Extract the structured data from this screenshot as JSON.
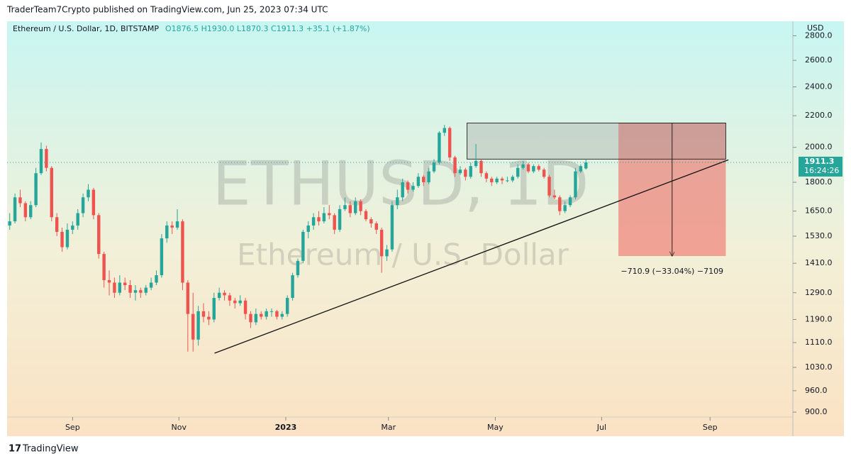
{
  "chart_data": {
    "type": "candlestick",
    "publisher": "TraderTeam7Crypto published on TradingView.com, Jun 25, 2023 07:34 UTC",
    "symbol": "Ethereum / U.S. Dollar, 1D, BITSTAMP",
    "ohlc_text": "O1876.5 H1930.0 L1870.3 C1911.3 +35.1 (+1.87%)",
    "watermark": "ETHUSD, 1D",
    "watermark_sub": "Ethereum / U.S. Dollar",
    "currency": "USD",
    "countdown": "16:24:26",
    "brand": "TradingView",
    "measure_label": "−710.9 (−33.04%) −7109",
    "up_color": "#26a69a",
    "down_color": "#ef5350",
    "log_scale": true,
    "xlim": [
      -0.5,
      149.5
    ],
    "xticks": [
      {
        "value": 12,
        "label": "Sep"
      },
      {
        "value": 32.3,
        "label": "Nov"
      },
      {
        "value": 52.7,
        "label": "2023"
      },
      {
        "value": 72.3,
        "label": "Mar"
      },
      {
        "value": 92.7,
        "label": "May"
      },
      {
        "value": 113,
        "label": "Jul"
      },
      {
        "value": 133.7,
        "label": "Sep"
      }
    ],
    "ylim": [
      837,
      2925
    ],
    "yticks": [
      {
        "value": 900,
        "label": "900.0"
      },
      {
        "value": 960,
        "label": "960.0"
      },
      {
        "value": 1030,
        "label": "1030.0"
      },
      {
        "value": 1110,
        "label": "1110.0"
      },
      {
        "value": 1190,
        "label": "1190.0"
      },
      {
        "value": 1290,
        "label": "1290.0"
      },
      {
        "value": 1410,
        "label": "1410.0"
      },
      {
        "value": 1530,
        "label": "1530.0"
      },
      {
        "value": 1650,
        "label": "1650.0"
      },
      {
        "value": 1800,
        "label": "1800.0"
      },
      {
        "value": 2000,
        "label": "2000.0"
      },
      {
        "value": 2200,
        "label": "2200.0"
      },
      {
        "value": 2400,
        "label": "2400.0"
      },
      {
        "value": 2600,
        "label": "2600.0"
      },
      {
        "value": 2800,
        "label": "2800.0"
      }
    ],
    "trendline": {
      "x": [
        39.1,
        137.2
      ],
      "y": [
        1075,
        1926
      ]
    },
    "range_box": {
      "x": [
        87.3,
        136.7
      ],
      "y": [
        2151.9,
        1930
      ]
    },
    "loss_box": {
      "x": [
        116.2,
        136.7
      ],
      "y": [
        2151.9,
        1441.0
      ]
    },
    "candles": [
      [
        1580,
        1640,
        1560,
        1600
      ],
      [
        1600,
        1740,
        1590,
        1720
      ],
      [
        1720,
        1760,
        1670,
        1690
      ],
      [
        1690,
        1700,
        1600,
        1620
      ],
      [
        1620,
        1700,
        1610,
        1680
      ],
      [
        1680,
        1880,
        1670,
        1850
      ],
      [
        1850,
        2030,
        1840,
        1990
      ],
      [
        1990,
        2010,
        1860,
        1880
      ],
      [
        1880,
        1890,
        1600,
        1620
      ],
      [
        1620,
        1640,
        1530,
        1550
      ],
      [
        1550,
        1570,
        1460,
        1480
      ],
      [
        1480,
        1590,
        1470,
        1560
      ],
      [
        1560,
        1600,
        1540,
        1580
      ],
      [
        1580,
        1660,
        1560,
        1640
      ],
      [
        1640,
        1740,
        1620,
        1720
      ],
      [
        1720,
        1790,
        1700,
        1760
      ],
      [
        1760,
        1770,
        1610,
        1630
      ],
      [
        1630,
        1640,
        1430,
        1450
      ],
      [
        1450,
        1460,
        1310,
        1340
      ],
      [
        1340,
        1380,
        1280,
        1330
      ],
      [
        1330,
        1350,
        1270,
        1290
      ],
      [
        1290,
        1360,
        1280,
        1330
      ],
      [
        1330,
        1350,
        1300,
        1320
      ],
      [
        1320,
        1340,
        1270,
        1290
      ],
      [
        1290,
        1320,
        1260,
        1300
      ],
      [
        1300,
        1310,
        1270,
        1290
      ],
      [
        1290,
        1320,
        1280,
        1310
      ],
      [
        1310,
        1350,
        1300,
        1330
      ],
      [
        1330,
        1380,
        1320,
        1360
      ],
      [
        1360,
        1540,
        1350,
        1520
      ],
      [
        1520,
        1600,
        1500,
        1580
      ],
      [
        1580,
        1600,
        1540,
        1570
      ],
      [
        1570,
        1660,
        1560,
        1600
      ],
      [
        1600,
        1610,
        1300,
        1330
      ],
      [
        1330,
        1340,
        1080,
        1210
      ],
      [
        1210,
        1290,
        1080,
        1120
      ],
      [
        1120,
        1240,
        1100,
        1220
      ],
      [
        1220,
        1250,
        1180,
        1200
      ],
      [
        1200,
        1220,
        1170,
        1190
      ],
      [
        1190,
        1290,
        1180,
        1270
      ],
      [
        1270,
        1310,
        1260,
        1290
      ],
      [
        1290,
        1300,
        1260,
        1280
      ],
      [
        1280,
        1290,
        1240,
        1260
      ],
      [
        1260,
        1270,
        1230,
        1250
      ],
      [
        1250,
        1280,
        1240,
        1260
      ],
      [
        1260,
        1270,
        1190,
        1210
      ],
      [
        1210,
        1220,
        1160,
        1180
      ],
      [
        1180,
        1230,
        1170,
        1210
      ],
      [
        1210,
        1220,
        1190,
        1200
      ],
      [
        1200,
        1230,
        1190,
        1220
      ],
      [
        1220,
        1230,
        1200,
        1220
      ],
      [
        1220,
        1225,
        1190,
        1200
      ],
      [
        1200,
        1220,
        1190,
        1210
      ],
      [
        1210,
        1280,
        1200,
        1270
      ],
      [
        1270,
        1370,
        1260,
        1360
      ],
      [
        1360,
        1430,
        1350,
        1420
      ],
      [
        1420,
        1560,
        1410,
        1550
      ],
      [
        1550,
        1600,
        1520,
        1580
      ],
      [
        1580,
        1640,
        1560,
        1620
      ],
      [
        1620,
        1650,
        1580,
        1600
      ],
      [
        1600,
        1670,
        1590,
        1640
      ],
      [
        1640,
        1680,
        1610,
        1630
      ],
      [
        1630,
        1640,
        1540,
        1560
      ],
      [
        1560,
        1680,
        1550,
        1660
      ],
      [
        1660,
        1720,
        1650,
        1680
      ],
      [
        1680,
        1700,
        1620,
        1640
      ],
      [
        1640,
        1720,
        1630,
        1700
      ],
      [
        1700,
        1710,
        1630,
        1650
      ],
      [
        1650,
        1660,
        1600,
        1610
      ],
      [
        1610,
        1620,
        1570,
        1590
      ],
      [
        1590,
        1600,
        1540,
        1560
      ],
      [
        1560,
        1570,
        1370,
        1440
      ],
      [
        1440,
        1490,
        1420,
        1470
      ],
      [
        1470,
        1700,
        1460,
        1680
      ],
      [
        1680,
        1760,
        1660,
        1720
      ],
      [
        1720,
        1820,
        1700,
        1800
      ],
      [
        1800,
        1810,
        1740,
        1760
      ],
      [
        1760,
        1800,
        1750,
        1780
      ],
      [
        1780,
        1850,
        1770,
        1830
      ],
      [
        1830,
        1840,
        1780,
        1800
      ],
      [
        1800,
        1880,
        1790,
        1860
      ],
      [
        1860,
        1930,
        1850,
        1910
      ],
      [
        1910,
        2100,
        1900,
        2090
      ],
      [
        2090,
        2140,
        2070,
        2120
      ],
      [
        2120,
        2130,
        1920,
        1940
      ],
      [
        1940,
        1950,
        1830,
        1850
      ],
      [
        1850,
        1890,
        1840,
        1870
      ],
      [
        1870,
        1880,
        1810,
        1830
      ],
      [
        1830,
        1910,
        1820,
        1890
      ],
      [
        1890,
        2020,
        1880,
        1920
      ],
      [
        1920,
        1930,
        1830,
        1850
      ],
      [
        1850,
        1860,
        1800,
        1820
      ],
      [
        1820,
        1830,
        1780,
        1800
      ],
      [
        1800,
        1830,
        1790,
        1820
      ],
      [
        1820,
        1830,
        1790,
        1810
      ],
      [
        1810,
        1830,
        1800,
        1810
      ],
      [
        1810,
        1840,
        1800,
        1830
      ],
      [
        1830,
        1900,
        1820,
        1880
      ],
      [
        1880,
        1920,
        1870,
        1900
      ],
      [
        1900,
        1910,
        1850,
        1860
      ],
      [
        1860,
        1900,
        1850,
        1890
      ],
      [
        1890,
        1900,
        1860,
        1870
      ],
      [
        1870,
        1880,
        1820,
        1830
      ],
      [
        1830,
        1840,
        1720,
        1730
      ],
      [
        1730,
        1760,
        1710,
        1720
      ],
      [
        1720,
        1730,
        1630,
        1650
      ],
      [
        1650,
        1700,
        1640,
        1680
      ],
      [
        1680,
        1730,
        1670,
        1720
      ],
      [
        1720,
        1880,
        1710,
        1860
      ],
      [
        1860,
        1900,
        1850,
        1890
      ],
      [
        1876.5,
        1930.0,
        1870.3,
        1911.3
      ]
    ]
  }
}
